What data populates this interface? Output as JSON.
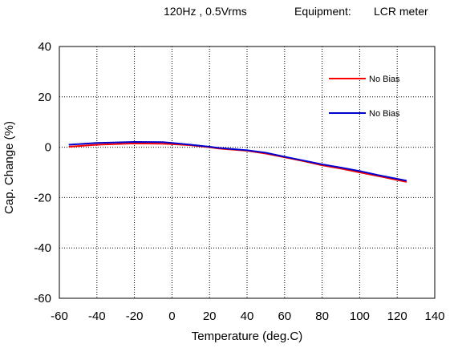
{
  "header": {
    "condition": "120Hz , 0.5Vrms",
    "equipment_label": "Equipment:",
    "equipment_value": "LCR meter"
  },
  "chart_data": {
    "type": "line",
    "title": "",
    "xlabel": "Temperature (deg.C)",
    "ylabel": "Cap. Change (%)",
    "xlim": [
      -60,
      140
    ],
    "ylim": [
      -60,
      40
    ],
    "xticks": [
      "-60",
      "-40",
      "-20",
      "0",
      "20",
      "40",
      "60",
      "80",
      "100",
      "120",
      "140"
    ],
    "yticks": [
      "40",
      "20",
      "0",
      "-20",
      "-40",
      "-60"
    ],
    "grid": true,
    "legend_position": "top-right",
    "series": [
      {
        "name": "No Bias",
        "color": "#ff0000",
        "x": [
          -55,
          -40,
          -20,
          -5,
          0,
          10,
          20,
          25,
          40,
          50,
          60,
          70,
          80,
          90,
          100,
          110,
          125
        ],
        "y": [
          0.2,
          1.0,
          1.5,
          1.4,
          1.2,
          0.8,
          0.0,
          -0.5,
          -1.4,
          -2.5,
          -4.0,
          -5.5,
          -7.2,
          -8.5,
          -10.0,
          -11.5,
          -13.8
        ]
      },
      {
        "name": "No Bias",
        "color": "#0000cc",
        "x": [
          -55,
          -40,
          -20,
          -5,
          0,
          10,
          20,
          25,
          40,
          50,
          60,
          70,
          80,
          90,
          100,
          110,
          125
        ],
        "y": [
          1.0,
          1.7,
          2.1,
          2.0,
          1.7,
          1.0,
          0.2,
          -0.3,
          -1.2,
          -2.2,
          -3.8,
          -5.3,
          -6.8,
          -8.1,
          -9.5,
          -11.1,
          -13.3
        ]
      }
    ]
  }
}
